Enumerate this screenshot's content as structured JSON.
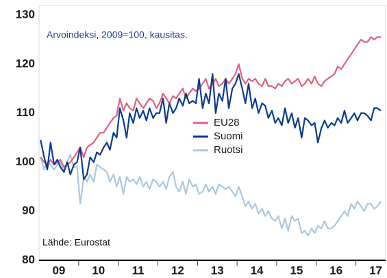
{
  "chart_data": {
    "type": "line",
    "subtitle": "Arvoindeksi, 2009=100, kausitas.",
    "annotation": "Lähde: Eurostat",
    "legend": "center",
    "grid": false,
    "xlim": [
      2009,
      2017.75
    ],
    "xticks": [
      {
        "value": 2009.5,
        "label": "09"
      },
      {
        "value": 2010.5,
        "label": "10"
      },
      {
        "value": 2011.5,
        "label": "11"
      },
      {
        "value": 2012.5,
        "label": "12"
      },
      {
        "value": 2013.5,
        "label": "13"
      },
      {
        "value": 2014.5,
        "label": "14"
      },
      {
        "value": 2015.5,
        "label": "15"
      },
      {
        "value": 2016.5,
        "label": "16"
      },
      {
        "value": 2017.5,
        "label": "17"
      }
    ],
    "ylim": [
      80,
      130
    ],
    "yticks": [
      80,
      90,
      100,
      110,
      120,
      130
    ],
    "x": [
      2009.04,
      2009.13,
      2009.21,
      2009.29,
      2009.38,
      2009.46,
      2009.54,
      2009.63,
      2009.71,
      2009.79,
      2009.88,
      2009.96,
      2010.04,
      2010.13,
      2010.21,
      2010.29,
      2010.38,
      2010.46,
      2010.54,
      2010.63,
      2010.71,
      2010.79,
      2010.88,
      2010.96,
      2011.04,
      2011.13,
      2011.21,
      2011.29,
      2011.38,
      2011.46,
      2011.54,
      2011.63,
      2011.71,
      2011.79,
      2011.88,
      2011.96,
      2012.04,
      2012.13,
      2012.21,
      2012.29,
      2012.38,
      2012.46,
      2012.54,
      2012.63,
      2012.71,
      2012.79,
      2012.88,
      2012.96,
      2013.04,
      2013.13,
      2013.21,
      2013.29,
      2013.38,
      2013.46,
      2013.54,
      2013.63,
      2013.71,
      2013.79,
      2013.88,
      2013.96,
      2014.04,
      2014.13,
      2014.21,
      2014.29,
      2014.38,
      2014.46,
      2014.54,
      2014.63,
      2014.71,
      2014.79,
      2014.88,
      2014.96,
      2015.04,
      2015.13,
      2015.21,
      2015.29,
      2015.38,
      2015.46,
      2015.54,
      2015.63,
      2015.71,
      2015.79,
      2015.88,
      2015.96,
      2016.04,
      2016.13,
      2016.21,
      2016.29,
      2016.38,
      2016.46,
      2016.54,
      2016.63,
      2016.71,
      2016.79,
      2016.88,
      2016.96,
      2017.04,
      2017.13,
      2017.21,
      2017.29,
      2017.38,
      2017.46,
      2017.54,
      2017.63
    ],
    "series": [
      {
        "name": "Ruotsi",
        "color": "#a9c8e0",
        "values": [
          101,
          98.5,
          100,
          99.5,
          98.5,
          99.5,
          100,
          98,
          100,
          101.5,
          99,
          99,
          91.5,
          97,
          96,
          97.5,
          96,
          99.5,
          99,
          98.5,
          98,
          96,
          97.5,
          95,
          97,
          93.5,
          97,
          96,
          96.5,
          95.5,
          97,
          95,
          96,
          94.5,
          96.5,
          96,
          95,
          96,
          94.5,
          97,
          98,
          95,
          94,
          96,
          93.5,
          96.5,
          95,
          95.5,
          93.5,
          94,
          95.5,
          94,
          95,
          93.5,
          95.5,
          95,
          94.5,
          95,
          94,
          93,
          95,
          93,
          91,
          92,
          90.5,
          91.5,
          89.5,
          90.5,
          89,
          90,
          88.5,
          88,
          89,
          86.5,
          88.5,
          86,
          89,
          88,
          88.5,
          85.5,
          86,
          85,
          86.5,
          85.5,
          87,
          86.5,
          88,
          86.5,
          86.5,
          87,
          88,
          89,
          90,
          89,
          91.5,
          90.5,
          92,
          91,
          90,
          91.5,
          91.5,
          90.5,
          91,
          92
        ]
      },
      {
        "name": "EU28",
        "color": "#e0607e",
        "values": [
          101,
          100,
          99.5,
          100.5,
          99.5,
          100,
          100.5,
          99,
          99.5,
          100,
          101,
          102,
          103,
          101,
          103,
          103.5,
          104,
          105,
          106,
          106,
          107,
          108,
          109,
          109.5,
          113,
          110.5,
          112,
          111,
          110.5,
          113,
          112,
          111,
          112,
          113,
          112.5,
          111,
          112,
          114,
          113,
          112,
          113.5,
          113,
          114,
          115,
          113,
          114,
          115,
          114.5,
          115,
          116,
          117,
          115,
          116,
          117,
          115.5,
          116,
          117,
          116,
          117,
          118,
          120,
          117,
          116,
          117,
          116.5,
          117,
          116,
          115.5,
          117,
          115.5,
          115.5,
          115,
          116,
          115.5,
          116.5,
          117,
          116,
          116.5,
          117,
          115.5,
          116,
          117,
          116,
          117.5,
          116,
          115.5,
          116.5,
          117,
          117.5,
          118,
          119.5,
          119,
          120,
          121,
          122,
          123,
          124,
          125,
          124.5,
          124.5,
          125.5,
          125,
          125.5,
          125.5
        ]
      },
      {
        "name": "Suomi",
        "color": "#0a3a8c",
        "values": [
          104.5,
          101,
          98.5,
          104,
          99.5,
          100.5,
          99,
          98,
          100,
          97.5,
          99.5,
          100,
          103,
          96.5,
          97.5,
          101,
          100,
          102,
          101.5,
          103,
          104,
          102.5,
          106,
          105,
          111,
          108.5,
          105,
          110,
          108,
          111,
          109,
          110.5,
          108.5,
          111,
          109,
          110,
          110,
          113,
          108,
          112,
          110,
          111,
          113,
          111.5,
          114,
          112,
          112.5,
          112,
          117,
          111,
          114,
          112,
          118,
          110,
          114,
          112.5,
          117,
          111,
          115,
          116,
          118,
          115,
          112,
          116,
          111,
          113,
          110,
          112,
          111.5,
          109,
          110.5,
          108,
          109,
          107.5,
          111,
          108,
          110,
          107,
          109,
          105,
          109,
          108.5,
          107.5,
          108,
          104,
          107,
          108.5,
          107,
          108,
          107.5,
          109,
          108,
          110.5,
          108,
          109,
          110,
          108.5,
          110,
          110,
          109.5,
          108.5,
          111,
          111,
          110.5
        ]
      }
    ]
  }
}
